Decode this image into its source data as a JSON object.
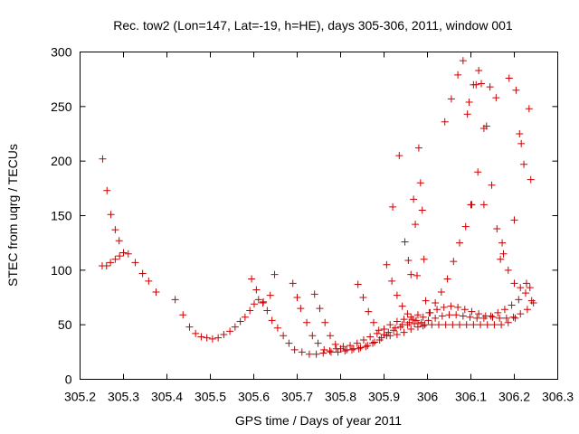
{
  "chart_data": {
    "type": "scatter",
    "title": "Rec. tow2 (Lon=147, Lat=-19, h=HE), days 305-306, 2011, window 001",
    "xlabel": "GPS time / Days of year 2011",
    "ylabel": "STEC from uqrg / TECUs",
    "xlim": [
      305.2,
      306.3
    ],
    "ylim": [
      0,
      300
    ],
    "xticks": [
      "305.2",
      "305.3",
      "305.4",
      "305.5",
      "305.6",
      "305.7",
      "305.8",
      "305.9",
      "306",
      "306.1",
      "306.2",
      "306.3"
    ],
    "yticks": [
      "0",
      "50",
      "100",
      "150",
      "200",
      "250",
      "300"
    ],
    "grid": false,
    "marker": "plus",
    "color": "#cc0000",
    "series": [
      {
        "values": [
          [
            305.252,
            202
          ],
          [
            305.262,
            173
          ],
          [
            305.271,
            151
          ],
          [
            305.281,
            137
          ],
          [
            305.29,
            127
          ],
          [
            305.3,
            116
          ],
          [
            305.311,
            115
          ],
          [
            305.327,
            107
          ],
          [
            305.344,
            97
          ],
          [
            305.358,
            90
          ],
          [
            305.375,
            80
          ],
          [
            305.419,
            73
          ],
          [
            305.437,
            59
          ],
          [
            305.452,
            48
          ],
          [
            305.466,
            42
          ],
          [
            305.479,
            39
          ],
          [
            305.492,
            38
          ],
          [
            305.505,
            37
          ],
          [
            305.518,
            38
          ],
          [
            305.531,
            41
          ],
          [
            305.545,
            44
          ],
          [
            305.557,
            48
          ],
          [
            305.569,
            53
          ],
          [
            305.58,
            57
          ],
          [
            305.591,
            63
          ],
          [
            305.601,
            69
          ],
          [
            305.611,
            73
          ],
          [
            305.621,
            70
          ],
          [
            305.631,
            63
          ],
          [
            305.642,
            54
          ],
          [
            305.655,
            47
          ],
          [
            305.668,
            40
          ],
          [
            305.681,
            33
          ],
          [
            305.694,
            27
          ],
          [
            305.711,
            25
          ],
          [
            305.728,
            23
          ],
          [
            305.744,
            23
          ],
          [
            305.76,
            24
          ],
          [
            305.775,
            26
          ],
          [
            305.79,
            28
          ],
          [
            305.806,
            30
          ],
          [
            305.822,
            31
          ],
          [
            305.838,
            33
          ],
          [
            305.853,
            36
          ],
          [
            305.868,
            39
          ],
          [
            305.884,
            42
          ],
          [
            305.9,
            46
          ],
          [
            305.914,
            50
          ],
          [
            305.93,
            53
          ],
          [
            305.946,
            55
          ],
          [
            305.962,
            57
          ],
          [
            305.978,
            59
          ]
        ]
      },
      {
        "values": [
          [
            305.251,
            104
          ],
          [
            305.261,
            104
          ],
          [
            305.27,
            107
          ],
          [
            305.281,
            110
          ],
          [
            305.291,
            113
          ],
          [
            305.595,
            92
          ],
          [
            305.606,
            82
          ],
          [
            305.622,
            71
          ],
          [
            305.638,
            77
          ],
          [
            305.648,
            96
          ],
          [
            305.69,
            88
          ],
          [
            305.7,
            75
          ],
          [
            305.708,
            65
          ],
          [
            305.722,
            52
          ],
          [
            305.735,
            40
          ],
          [
            305.748,
            33
          ],
          [
            305.762,
            27
          ],
          [
            305.778,
            25
          ],
          [
            305.794,
            25
          ],
          [
            305.81,
            26
          ],
          [
            305.826,
            27
          ],
          [
            305.842,
            28
          ],
          [
            305.858,
            30
          ],
          [
            305.874,
            33
          ],
          [
            305.89,
            36
          ],
          [
            305.906,
            40
          ],
          [
            305.922,
            45
          ],
          [
            305.938,
            48
          ],
          [
            305.954,
            50
          ],
          [
            305.97,
            51
          ],
          [
            305.986,
            52
          ],
          [
            306.002,
            54
          ],
          [
            306.018,
            56
          ],
          [
            306.034,
            58
          ],
          [
            306.05,
            59
          ],
          [
            306.066,
            59
          ],
          [
            306.082,
            58
          ],
          [
            306.098,
            57
          ],
          [
            306.114,
            56
          ],
          [
            306.13,
            56
          ],
          [
            306.146,
            58
          ],
          [
            306.162,
            61
          ],
          [
            306.178,
            64
          ],
          [
            306.194,
            68
          ],
          [
            306.21,
            73
          ],
          [
            306.226,
            79
          ],
          [
            306.236,
            84
          ]
        ]
      },
      {
        "values": [
          [
            305.74,
            78
          ],
          [
            305.752,
            65
          ],
          [
            305.764,
            52
          ],
          [
            305.776,
            40
          ],
          [
            305.788,
            32
          ],
          [
            305.8,
            28
          ],
          [
            305.814,
            27
          ],
          [
            305.83,
            28
          ],
          [
            305.846,
            29
          ],
          [
            305.862,
            31
          ],
          [
            305.878,
            34
          ],
          [
            305.894,
            38
          ],
          [
            305.91,
            43
          ],
          [
            305.926,
            47
          ],
          [
            305.942,
            50
          ],
          [
            305.958,
            52
          ],
          [
            305.974,
            54
          ],
          [
            305.99,
            57
          ],
          [
            306.006,
            61
          ],
          [
            306.022,
            64
          ],
          [
            306.038,
            66
          ],
          [
            306.054,
            67
          ],
          [
            306.07,
            66
          ],
          [
            306.086,
            64
          ],
          [
            306.102,
            62
          ],
          [
            306.118,
            60
          ],
          [
            306.134,
            58
          ],
          [
            306.15,
            57
          ],
          [
            306.166,
            56
          ],
          [
            306.182,
            56
          ],
          [
            306.198,
            57
          ],
          [
            306.214,
            60
          ],
          [
            306.23,
            64
          ]
        ]
      },
      {
        "values": [
          [
            305.84,
            87
          ],
          [
            305.852,
            75
          ],
          [
            305.864,
            62
          ],
          [
            305.876,
            52
          ],
          [
            305.888,
            45
          ],
          [
            305.9,
            41
          ],
          [
            305.914,
            40
          ],
          [
            305.93,
            41
          ],
          [
            305.946,
            43
          ],
          [
            305.962,
            46
          ],
          [
            305.978,
            48
          ],
          [
            305.994,
            50
          ],
          [
            306.01,
            50
          ],
          [
            306.026,
            50
          ],
          [
            306.042,
            50
          ],
          [
            306.058,
            50
          ],
          [
            306.074,
            50
          ],
          [
            306.09,
            50
          ],
          [
            306.106,
            50
          ],
          [
            306.122,
            50
          ],
          [
            306.138,
            50
          ],
          [
            306.154,
            50
          ],
          [
            306.17,
            50
          ],
          [
            306.186,
            52
          ],
          [
            306.202,
            56
          ]
        ]
      },
      {
        "values": [
          [
            305.906,
            105
          ],
          [
            305.918,
            90
          ],
          [
            305.93,
            77
          ],
          [
            305.942,
            67
          ],
          [
            305.954,
            60
          ],
          [
            305.966,
            55
          ],
          [
            305.978,
            51
          ],
          [
            305.99,
            49
          ],
          [
            306.004,
            61
          ],
          [
            306.018,
            70
          ],
          [
            306.032,
            80
          ],
          [
            306.046,
            92
          ],
          [
            306.06,
            108
          ],
          [
            306.074,
            125
          ],
          [
            306.088,
            140
          ],
          [
            306.102,
            160
          ],
          [
            306.116,
            190
          ],
          [
            306.13,
            230
          ],
          [
            306.144,
            268
          ],
          [
            306.158,
            258
          ],
          [
            306.172,
            125
          ],
          [
            306.186,
            100
          ],
          [
            306.2,
            88
          ],
          [
            306.214,
            84
          ],
          [
            306.228,
            88
          ]
        ]
      },
      {
        "values": [
          [
            305.92,
            158
          ],
          [
            305.935,
            205
          ],
          [
            305.948,
            126
          ],
          [
            305.956,
            109
          ],
          [
            305.962,
            96
          ],
          [
            305.968,
            165
          ],
          [
            305.972,
            142
          ],
          [
            305.976,
            95
          ],
          [
            305.98,
            212
          ],
          [
            305.984,
            180
          ],
          [
            305.988,
            155
          ],
          [
            305.992,
            110
          ],
          [
            305.996,
            72
          ],
          [
            306.04,
            236
          ],
          [
            306.055,
            257
          ],
          [
            306.07,
            279
          ],
          [
            306.082,
            292
          ],
          [
            306.092,
            243
          ],
          [
            306.096,
            254
          ],
          [
            306.1,
            160
          ],
          [
            306.106,
            270
          ],
          [
            306.112,
            270
          ],
          [
            306.118,
            283
          ],
          [
            306.124,
            271
          ],
          [
            306.13,
            160
          ],
          [
            306.136,
            232
          ],
          [
            306.148,
            178
          ],
          [
            306.16,
            138
          ],
          [
            306.168,
            110
          ],
          [
            306.175,
            115
          ],
          [
            306.188,
            276
          ],
          [
            306.2,
            146
          ],
          [
            306.204,
            265
          ],
          [
            306.212,
            225
          ],
          [
            306.216,
            216
          ],
          [
            306.222,
            197
          ],
          [
            306.234,
            248
          ],
          [
            306.238,
            183
          ],
          [
            306.24,
            72
          ],
          [
            306.244,
            70
          ]
        ]
      }
    ]
  }
}
